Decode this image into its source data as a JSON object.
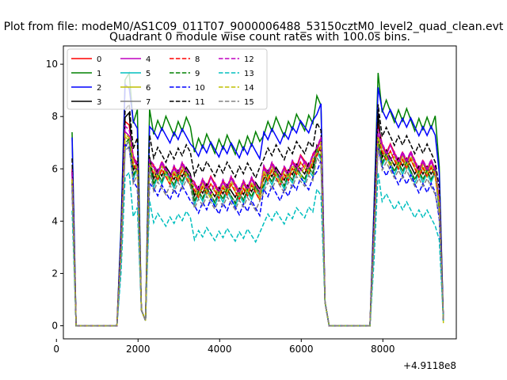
{
  "chart_data": {
    "type": "line",
    "suptitle": "Plot from file: modeM0/AS1C09_011T07_9000006488_53150cztM0_level2_quad_clean.evt",
    "title": "Quadrant 0 module wise count rates with 100.0s bins.",
    "xlabel": "",
    "ylabel": "",
    "offset_text": "+4.9118e8",
    "xlim": [
      170,
      9800
    ],
    "ylim": [
      -0.5,
      10.7
    ],
    "xticks": [
      0,
      2000,
      4000,
      6000,
      8000
    ],
    "xtick_labels": [
      "0",
      "2000",
      "4000",
      "6000",
      "8000"
    ],
    "yticks": [
      0,
      2,
      4,
      6,
      8,
      10
    ],
    "ytick_labels": [
      "0",
      "2",
      "4",
      "6",
      "8",
      "10"
    ],
    "legend_position": "top-left",
    "segments": [
      {
        "start": 383,
        "end": 483
      },
      {
        "start": 1483,
        "end": 2183
      },
      {
        "start": 2183,
        "end": 2283
      },
      {
        "start": 2283,
        "end": 6483
      },
      {
        "start": 6483,
        "end": 6683
      },
      {
        "start": 7683,
        "end": 7783
      },
      {
        "start": 7783,
        "end": 9383
      },
      {
        "start": 9383,
        "end": 9483
      }
    ],
    "x_start": 383,
    "x_step": 100,
    "series": [
      {
        "name": "0",
        "color": "#ff0000",
        "dash": "solid",
        "level": 6.0,
        "spike": 7.8,
        "noise": 0.35,
        "start": 6.0,
        "end": 0.2
      },
      {
        "name": "1",
        "color": "#008000",
        "dash": "solid",
        "level": 7.6,
        "spike": 9.6,
        "noise": 0.45,
        "start": 7.4,
        "end": 0.2
      },
      {
        "name": "2",
        "color": "#0000ff",
        "dash": "solid",
        "level": 7.3,
        "spike": 9.2,
        "noise": 0.35,
        "start": 7.2,
        "end": 0.2
      },
      {
        "name": "3",
        "color": "#000000",
        "dash": "solid",
        "level": 5.8,
        "spike": 8.1,
        "noise": 0.3,
        "start": 5.9,
        "end": 0.2
      },
      {
        "name": "4",
        "color": "#bf00bf",
        "dash": "solid",
        "level": 5.9,
        "spike": 7.4,
        "noise": 0.4,
        "start": 5.8,
        "end": 0.2
      },
      {
        "name": "5",
        "color": "#00bfbf",
        "dash": "solid",
        "level": 5.5,
        "spike": 7.0,
        "noise": 0.35,
        "start": 5.5,
        "end": 0.2
      },
      {
        "name": "6",
        "color": "#bfbf00",
        "dash": "solid",
        "level": 5.7,
        "spike": 7.2,
        "noise": 0.35,
        "start": 5.6,
        "end": 0.2
      },
      {
        "name": "7",
        "color": "#808080",
        "dash": "solid",
        "level": 5.6,
        "spike": 7.0,
        "noise": 0.3,
        "start": 5.4,
        "end": 0.2
      },
      {
        "name": "8",
        "color": "#ff0000",
        "dash": "dashed",
        "level": 5.7,
        "spike": 7.3,
        "noise": 0.35,
        "start": 5.6,
        "end": 0.2
      },
      {
        "name": "9",
        "color": "#008000",
        "dash": "dashed",
        "level": 5.6,
        "spike": 7.1,
        "noise": 0.35,
        "start": 5.5,
        "end": 0.2
      },
      {
        "name": "10",
        "color": "#0000ff",
        "dash": "dashed",
        "level": 5.1,
        "spike": 6.9,
        "noise": 0.35,
        "start": 5.2,
        "end": 0.2
      },
      {
        "name": "11",
        "color": "#000000",
        "dash": "dashed",
        "level": 6.6,
        "spike": 8.4,
        "noise": 0.35,
        "start": 6.4,
        "end": 0.2
      },
      {
        "name": "12",
        "color": "#bf00bf",
        "dash": "dashed",
        "level": 6.0,
        "spike": 7.6,
        "noise": 0.35,
        "start": 5.9,
        "end": 0.2
      },
      {
        "name": "13",
        "color": "#00bfbf",
        "dash": "dashed",
        "level": 4.1,
        "spike": 5.8,
        "noise": 0.3,
        "start": 4.4,
        "end": 0.2
      },
      {
        "name": "14",
        "color": "#bfbf00",
        "dash": "dashed",
        "level": 5.8,
        "spike": 7.3,
        "noise": 0.35,
        "start": 5.6,
        "end": 0.1
      },
      {
        "name": "15",
        "color": "#808080",
        "dash": "dashed",
        "level": 5.3,
        "spike": 6.8,
        "noise": 0.3,
        "start": 5.3,
        "end": 0.2
      }
    ]
  }
}
